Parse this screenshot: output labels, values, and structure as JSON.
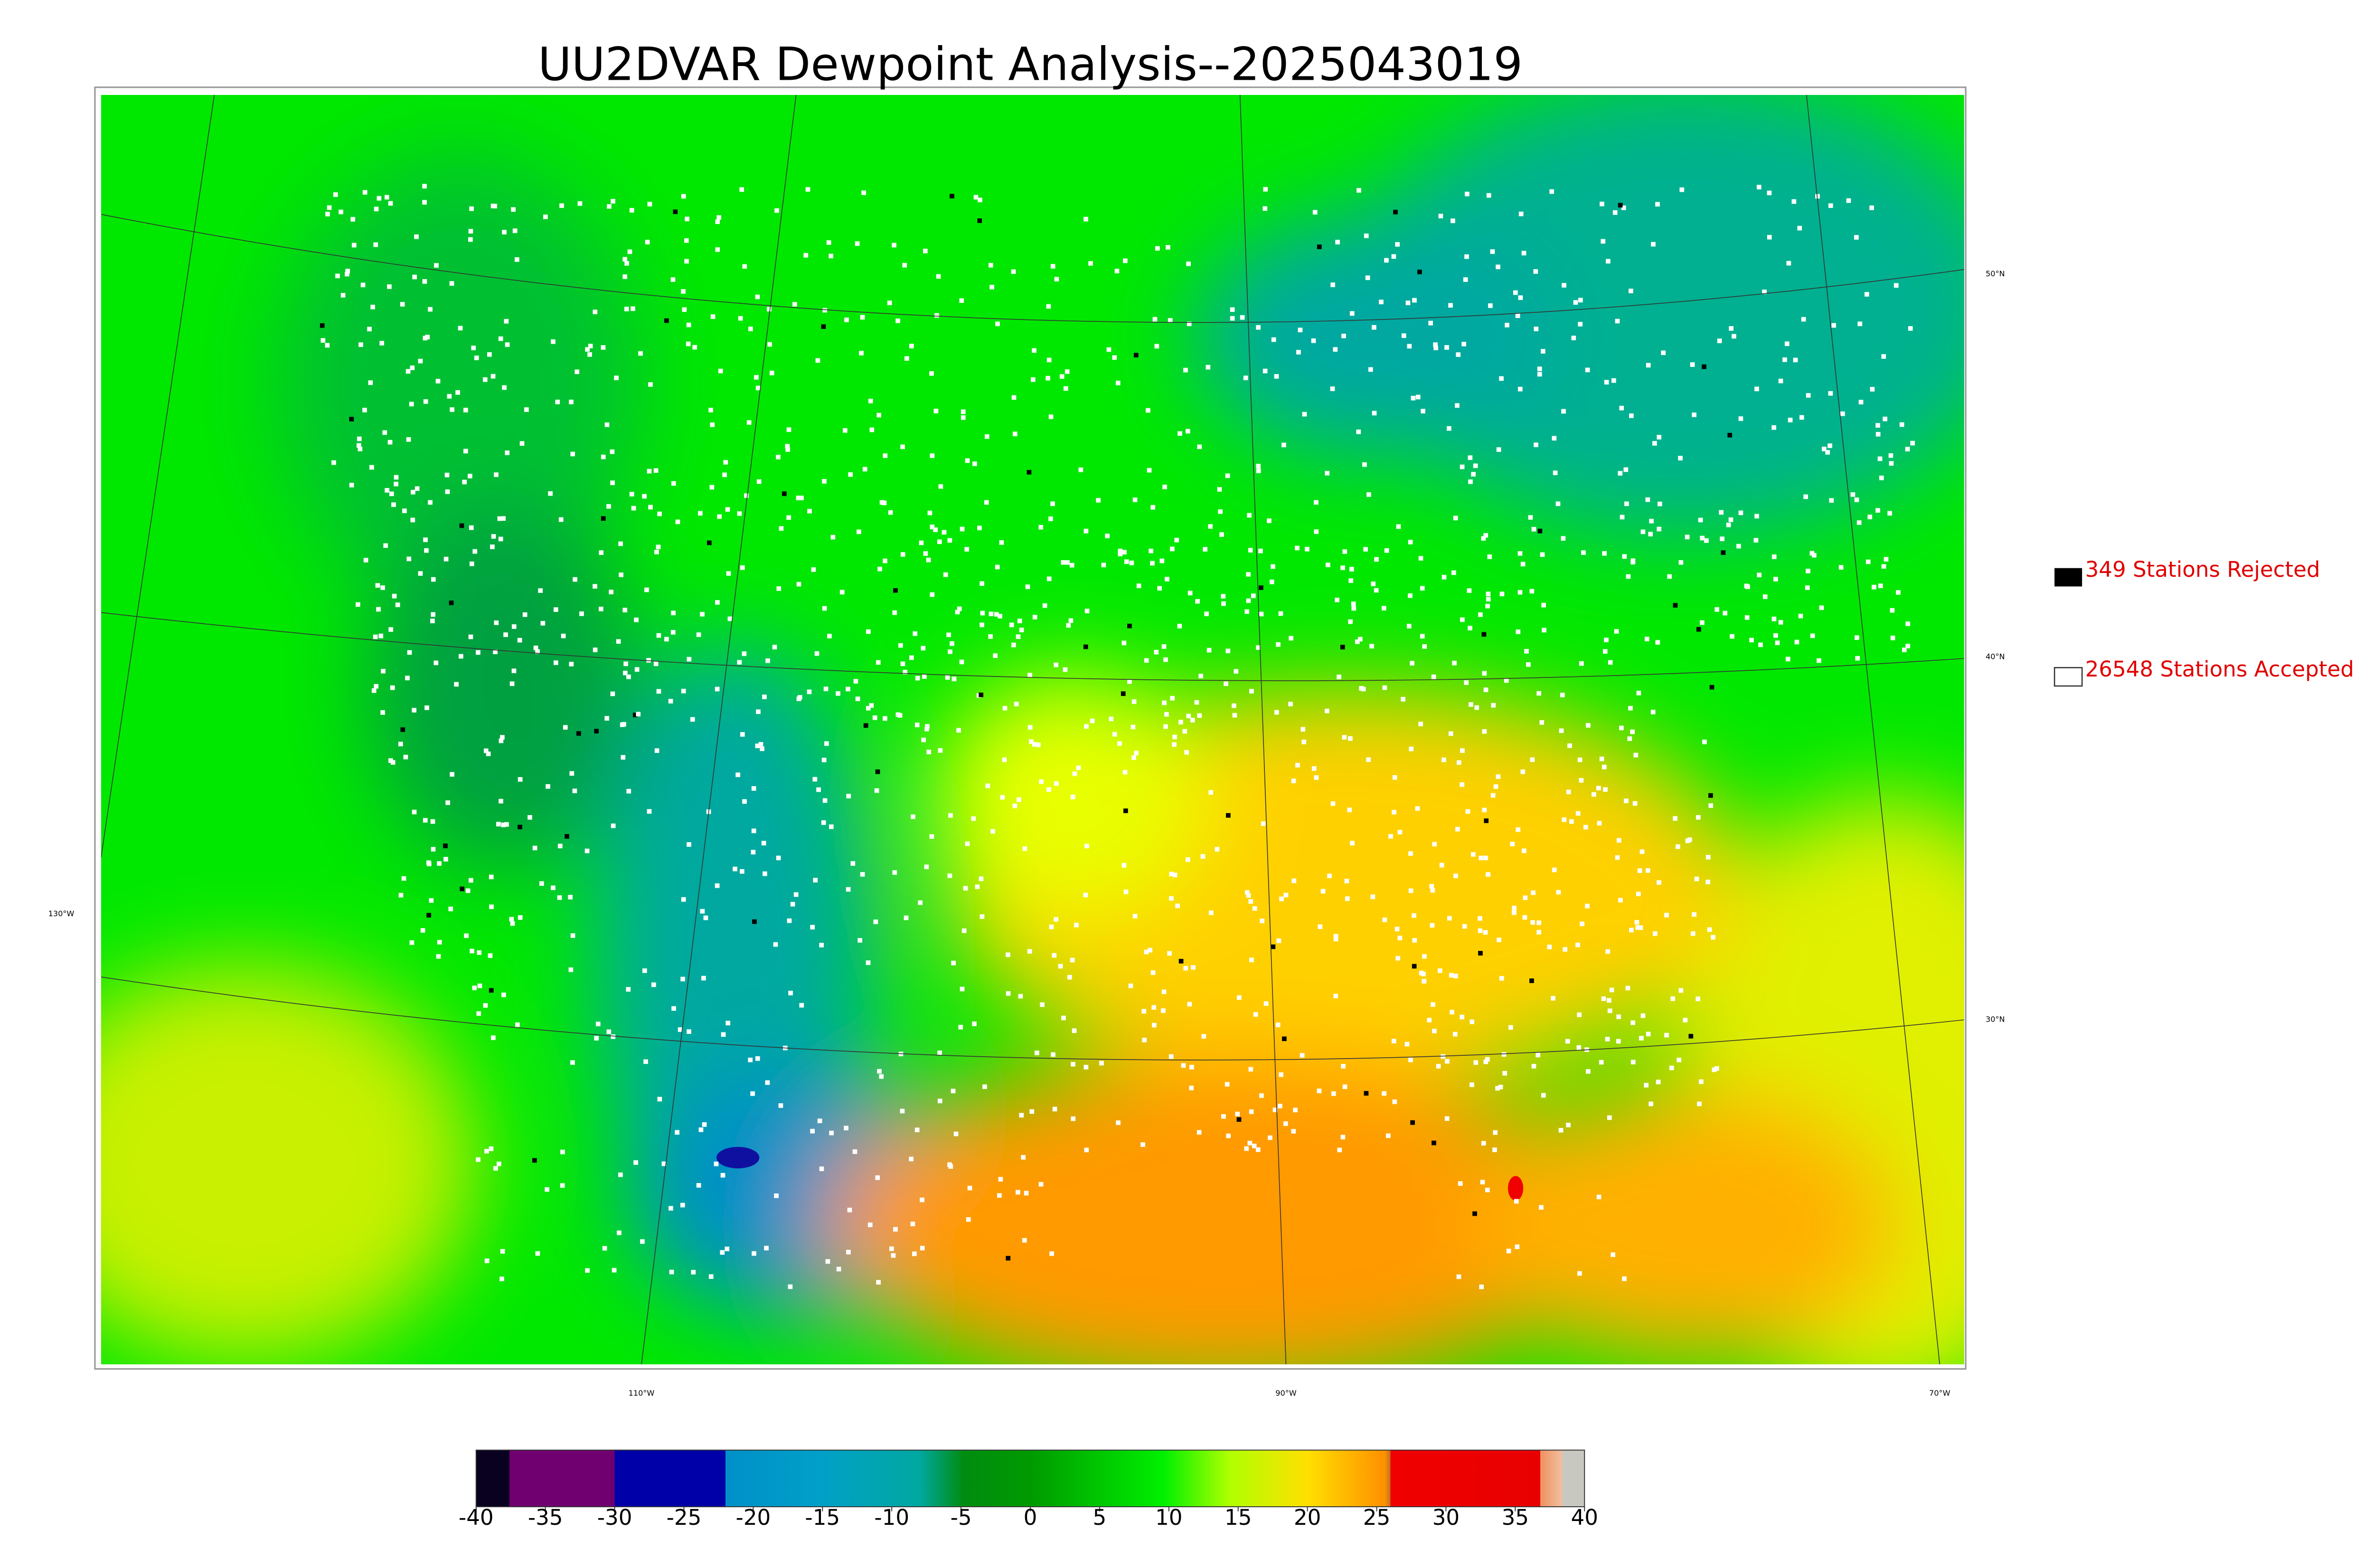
{
  "title": "UU2DVAR Dewpoint Analysis--2025043019",
  "map": {
    "lat_labels": [
      "50°N",
      "40°N",
      "30°N"
    ],
    "lon_labels": [
      "130°W",
      "110°W",
      "90°W",
      "70°W"
    ]
  },
  "legend": {
    "rejected": "349 Stations Rejected",
    "accepted": "26548 Stations Accepted"
  },
  "colorbar": {
    "range": [
      -40,
      40
    ],
    "ticks": [
      -40,
      -35,
      -30,
      -25,
      -20,
      -15,
      -10,
      -5,
      0,
      5,
      10,
      15,
      20,
      25,
      30,
      35,
      40
    ]
  }
}
